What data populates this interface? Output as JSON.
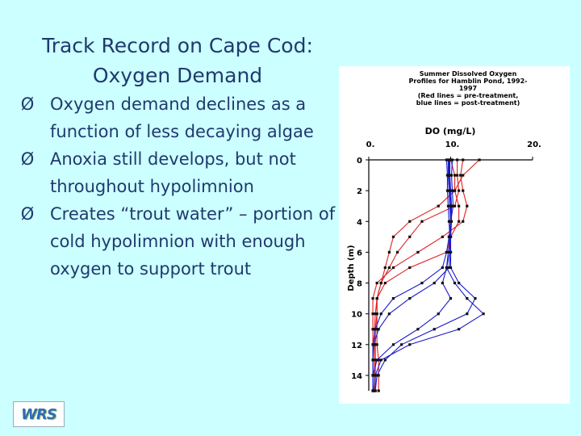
{
  "slide": {
    "title_line1": "Track Record on Cape Cod:",
    "title_line2": "Oxygen Demand",
    "bullet_marker": "Ø",
    "bullets": [
      "Oxygen demand declines as a function of less decaying algae",
      "Anoxia still develops, but not throughout hypolimnion",
      "Creates “trout water” – portion of cold hypolimnion with enough oxygen to support trout"
    ],
    "logo_text": "WRS"
  },
  "chart_data": {
    "type": "line",
    "title_lines": [
      "Summer Dissolved Oxygen",
      "Profiles for Hamblin Pond, 1992-",
      "1997",
      "(Red lines = pre-treatment,",
      "blue lines = post-treatment)"
    ],
    "xlabel": "DO (mg/L)",
    "ylabel": "Depth (m)",
    "x_ticks": [
      "0.",
      "10.",
      "20."
    ],
    "y_ticks": [
      0,
      2,
      4,
      6,
      8,
      10,
      12,
      14
    ],
    "xlim": [
      0,
      20
    ],
    "ylim": [
      0,
      15
    ],
    "y_inverted": true,
    "series": [
      {
        "group": "pre-treatment",
        "color": "#e02020",
        "depths": [
          0,
          1,
          2,
          3,
          4,
          5,
          6,
          7,
          8,
          9,
          10,
          11,
          12,
          13,
          14,
          15
        ],
        "values": [
          13.5,
          11.5,
          10.5,
          8.5,
          5.0,
          3.0,
          2.5,
          2.0,
          1.5,
          1.0,
          1.0,
          0.8,
          0.8,
          0.8,
          0.8,
          0.8
        ]
      },
      {
        "group": "pre-treatment",
        "color": "#e02020",
        "depths": [
          0,
          1,
          2,
          3,
          4,
          5,
          6,
          7,
          8,
          9,
          10,
          11,
          12,
          13,
          14,
          15
        ],
        "values": [
          10.8,
          10.8,
          11.0,
          10.5,
          6.5,
          5.0,
          3.5,
          2.5,
          1.5,
          1.0,
          0.8,
          0.7,
          0.7,
          0.7,
          0.7,
          0.7
        ]
      },
      {
        "group": "pre-treatment",
        "color": "#e02020",
        "depths": [
          0,
          1,
          2,
          3,
          4,
          5,
          6,
          7,
          8,
          9,
          10,
          11,
          12,
          13,
          14,
          15
        ],
        "values": [
          11.5,
          11.2,
          11.5,
          12.0,
          11.5,
          9.0,
          6.0,
          3.0,
          1.0,
          0.5,
          0.5,
          0.5,
          0.5,
          0.5,
          0.5,
          0.5
        ]
      },
      {
        "group": "pre-treatment",
        "color": "#e02020",
        "depths": [
          0,
          1,
          2,
          3,
          4,
          5,
          6,
          7,
          8,
          9,
          10,
          11,
          12,
          13,
          14,
          15
        ],
        "values": [
          10.0,
          10.5,
          10.5,
          11.0,
          11.0,
          10.0,
          9.5,
          5.0,
          2.0,
          1.0,
          1.0,
          1.0,
          1.0,
          1.2,
          1.2,
          1.2
        ]
      },
      {
        "group": "post-treatment",
        "color": "#1a1acc",
        "depths": [
          0,
          1,
          2,
          3,
          4,
          5,
          6,
          7,
          8,
          9,
          10,
          11,
          12,
          13,
          14,
          15
        ],
        "values": [
          9.8,
          9.8,
          9.9,
          10.0,
          10.0,
          9.8,
          9.5,
          9.0,
          6.5,
          3.0,
          1.5,
          0.8,
          0.5,
          0.5,
          0.5,
          0.5
        ]
      },
      {
        "group": "post-treatment",
        "color": "#1a1acc",
        "depths": [
          0,
          1,
          2,
          3,
          4,
          5,
          6,
          7,
          8,
          9,
          10,
          11,
          12,
          13,
          14,
          15
        ],
        "values": [
          9.5,
          9.6,
          9.6,
          9.7,
          9.8,
          9.9,
          10.0,
          10.0,
          11.0,
          13.0,
          12.0,
          8.0,
          4.0,
          2.0,
          1.0,
          0.8
        ]
      },
      {
        "group": "post-treatment",
        "color": "#1a1acc",
        "depths": [
          0,
          1,
          2,
          3,
          4,
          5,
          6,
          7,
          8,
          9,
          10,
          11,
          12,
          13,
          14,
          15
        ],
        "values": [
          10.2,
          10.1,
          10.2,
          10.3,
          10.0,
          9.8,
          9.9,
          9.5,
          10.5,
          12.0,
          14.0,
          11.0,
          5.0,
          1.5,
          0.8,
          0.6
        ]
      },
      {
        "group": "post-treatment",
        "color": "#1a1acc",
        "depths": [
          0,
          1,
          2,
          3,
          4,
          5,
          6,
          7,
          8,
          9,
          10,
          11,
          12,
          13,
          14,
          15
        ],
        "values": [
          9.9,
          9.9,
          10.0,
          10.1,
          10.1,
          10.0,
          9.7,
          9.5,
          9.0,
          10.0,
          8.5,
          6.0,
          3.0,
          1.0,
          0.5,
          0.5
        ]
      },
      {
        "group": "post-treatment",
        "color": "#1a1acc",
        "depths": [
          0,
          1,
          2,
          3,
          4,
          5,
          6,
          7,
          8,
          9,
          10,
          11,
          12,
          13,
          14,
          15
        ],
        "values": [
          9.7,
          9.7,
          9.8,
          9.9,
          10.0,
          10.0,
          10.0,
          9.8,
          8.0,
          5.0,
          2.5,
          1.2,
          0.6,
          0.5,
          0.5,
          0.5
        ]
      }
    ]
  }
}
